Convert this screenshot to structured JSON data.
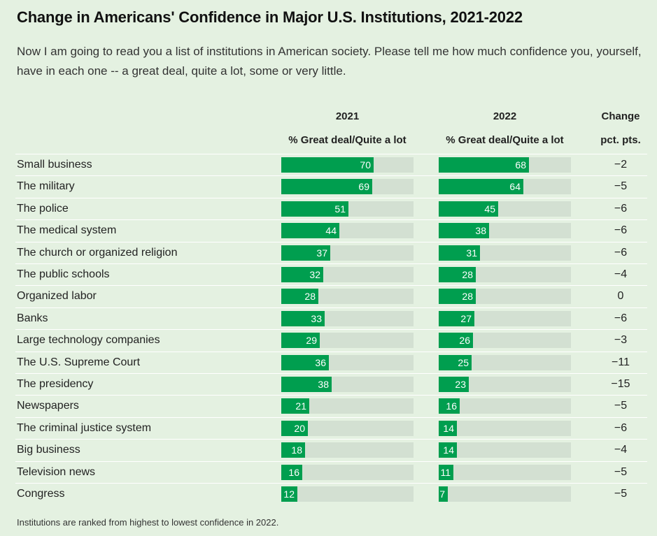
{
  "title": "Change in Americans' Confidence in Major U.S. Institutions, 2021-2022",
  "subtitle": "Now I am going to read you a list of institutions in American society. Please tell me how much confidence you, yourself, have in each one -- a great deal, quite a lot, some or very little.",
  "columns": {
    "y2021": "2021",
    "y2022": "2022",
    "change": "Change",
    "y2021_sub": "% Great deal/Quite a lot",
    "y2022_sub": "% Great deal/Quite a lot",
    "change_sub": "pct. pts."
  },
  "footnote": "Institutions are ranked from highest to lowest confidence in 2022.",
  "colors": {
    "background": "#e4f1e1",
    "bar": "#009e4f",
    "track": "#d3e0d2"
  },
  "chart_data": {
    "type": "bar",
    "xlim": [
      0,
      100
    ],
    "categories": [
      "Small business",
      "The military",
      "The police",
      "The medical system",
      "The church or organized religion",
      "The public schools",
      "Organized labor",
      "Banks",
      "Large technology companies",
      "The U.S. Supreme Court",
      "The presidency",
      "Newspapers",
      "The criminal justice system",
      "Big business",
      "Television news",
      "Congress"
    ],
    "series": [
      {
        "name": "2021",
        "values": [
          70,
          69,
          51,
          44,
          37,
          32,
          28,
          33,
          29,
          36,
          38,
          21,
          20,
          18,
          16,
          12
        ]
      },
      {
        "name": "2022",
        "values": [
          68,
          64,
          45,
          38,
          31,
          28,
          28,
          27,
          26,
          25,
          23,
          16,
          14,
          14,
          11,
          7
        ]
      }
    ],
    "change": [
      "−2",
      "−5",
      "−6",
      "−6",
      "−6",
      "−4",
      "0",
      "−6",
      "−3",
      "−11",
      "−15",
      "−5",
      "−6",
      "−4",
      "−5",
      "−5"
    ]
  }
}
